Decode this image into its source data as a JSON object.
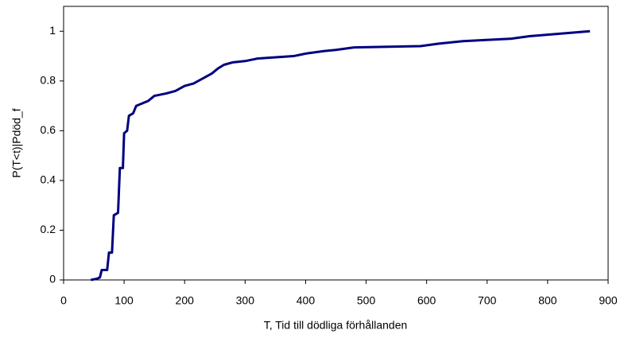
{
  "chart_data": {
    "type": "line",
    "xlabel": "T, Tid till dödliga förhållanden",
    "ylabel": "P(T<t)|Pdöd_f",
    "x": [
      45,
      55,
      60,
      63,
      72,
      75,
      80,
      83,
      90,
      93,
      98,
      100,
      105,
      108,
      115,
      120,
      130,
      140,
      150,
      170,
      185,
      200,
      215,
      230,
      245,
      255,
      265,
      280,
      300,
      320,
      380,
      400,
      430,
      450,
      480,
      590,
      620,
      660,
      740,
      770,
      820,
      870
    ],
    "series": [
      {
        "name": "P(T<t)",
        "color": "#000080",
        "values": [
          0,
          0.005,
          0.01,
          0.04,
          0.04,
          0.11,
          0.11,
          0.26,
          0.27,
          0.45,
          0.45,
          0.59,
          0.6,
          0.66,
          0.67,
          0.7,
          0.71,
          0.72,
          0.74,
          0.75,
          0.76,
          0.78,
          0.79,
          0.81,
          0.83,
          0.85,
          0.865,
          0.875,
          0.88,
          0.89,
          0.9,
          0.91,
          0.92,
          0.925,
          0.935,
          0.94,
          0.95,
          0.96,
          0.97,
          0.98,
          0.99,
          1.0
        ]
      }
    ],
    "xlim": [
      0,
      900
    ],
    "xticks": [
      0,
      100,
      200,
      300,
      400,
      500,
      600,
      700,
      800,
      900
    ],
    "ylim": [
      0,
      1.1
    ],
    "yticks": [
      0,
      0.2,
      0.4,
      0.6,
      0.8,
      1
    ],
    "grid": false
  }
}
